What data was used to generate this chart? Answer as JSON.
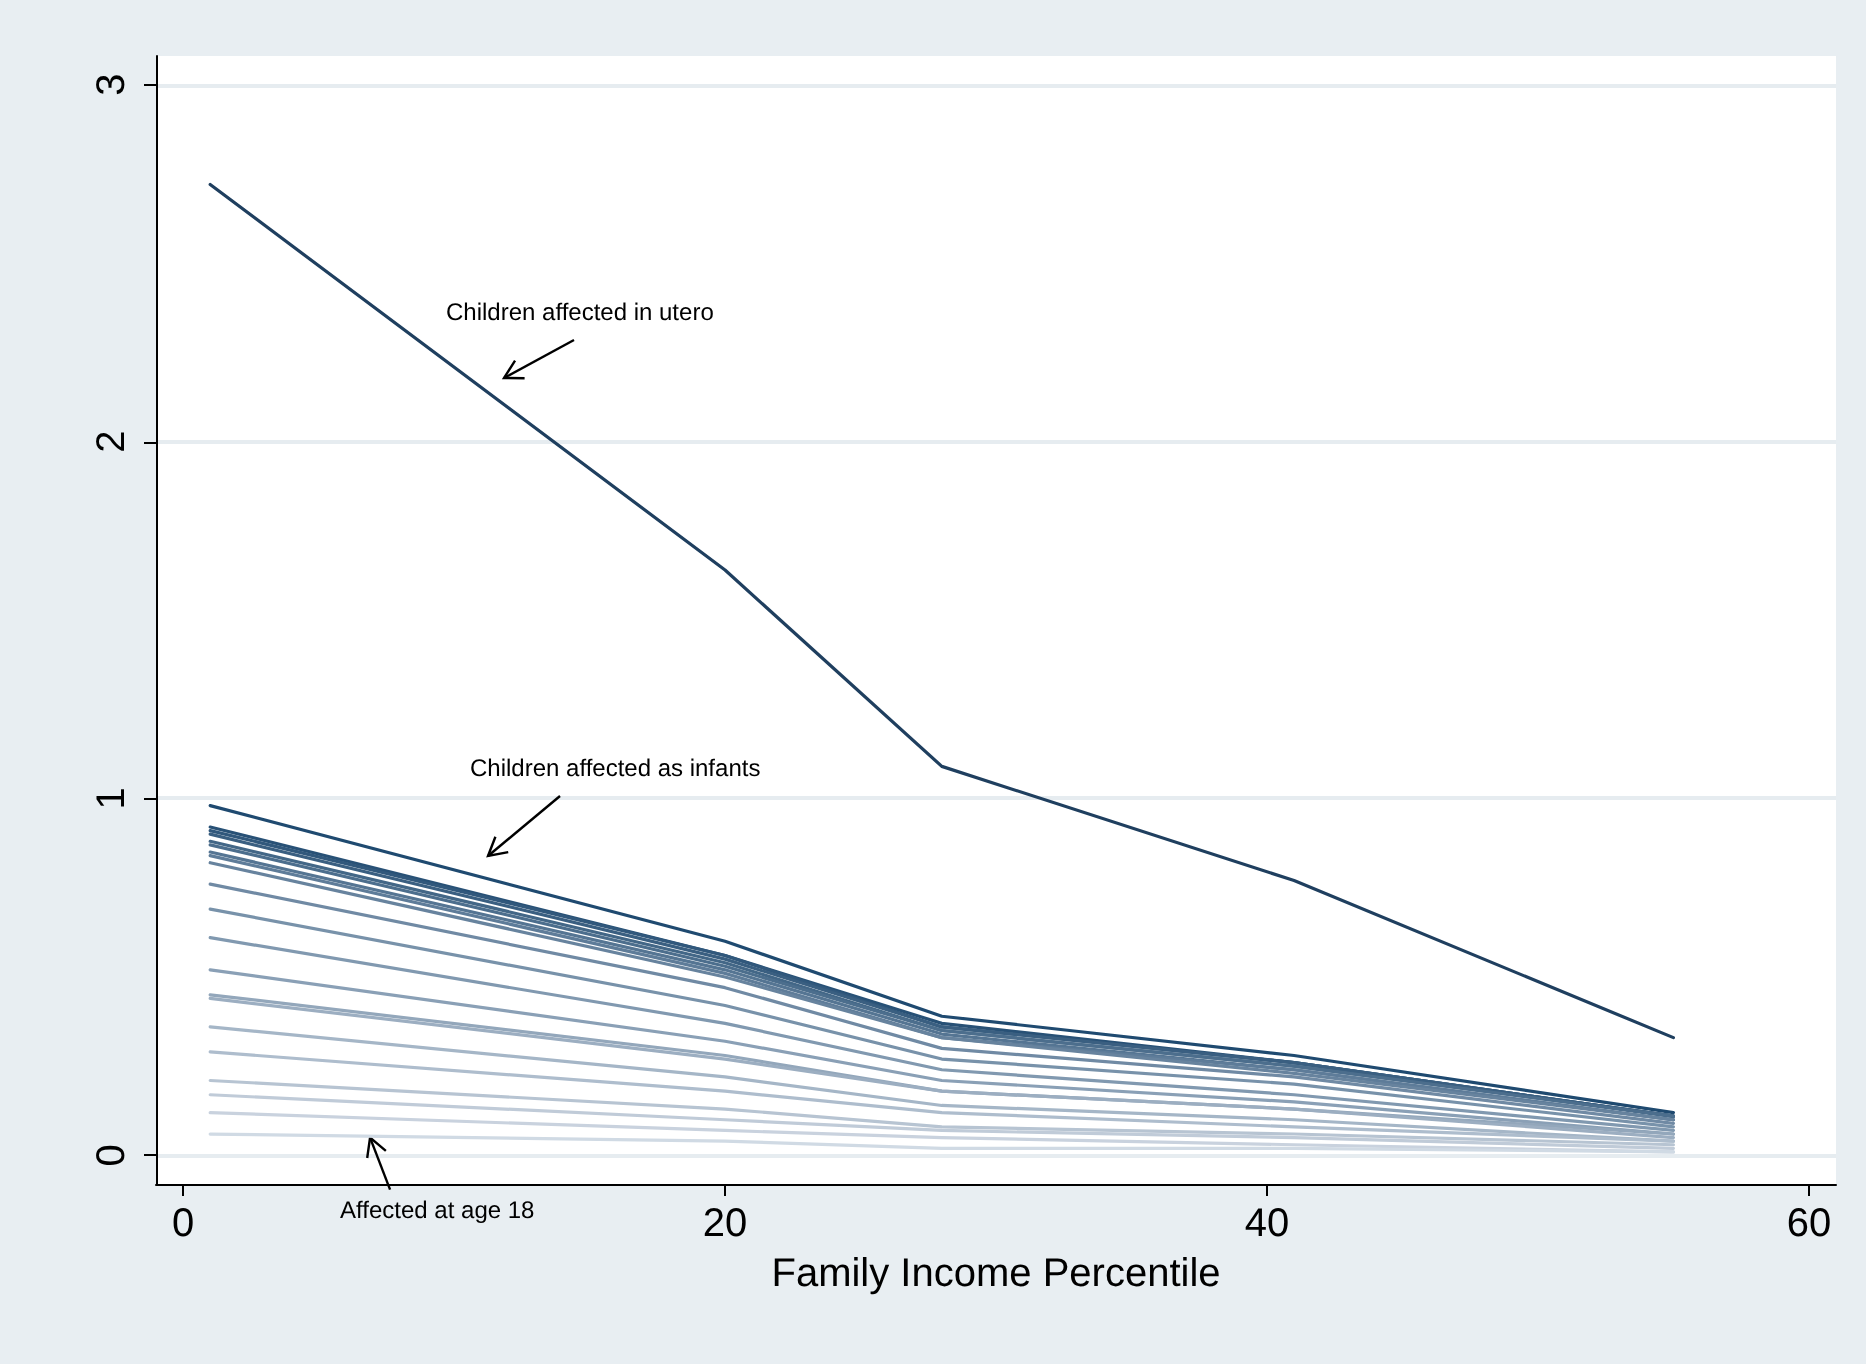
{
  "chart_data": {
    "type": "line",
    "xlabel": "Family Income Percentile",
    "xlim": [
      -1,
      61
    ],
    "xticks": [
      0,
      20,
      40,
      60
    ],
    "ylim": [
      -0.08,
      3.08
    ],
    "yticks": [
      0,
      1,
      2,
      3
    ],
    "grid": "y",
    "marker": "none",
    "line_style": "solid",
    "x": [
      1,
      20,
      28,
      41,
      55
    ],
    "series": [
      {
        "color": "#1f3f5f",
        "values": [
          2.72,
          1.64,
          1.09,
          0.77,
          0.33
        ]
      },
      {
        "color": "#1f4a70",
        "values": [
          0.98,
          0.6,
          0.39,
          0.28,
          0.12
        ]
      },
      {
        "color": "#285176",
        "values": [
          0.92,
          0.56,
          0.37,
          0.26,
          0.11
        ]
      },
      {
        "color": "#31587c",
        "values": [
          0.91,
          0.56,
          0.36,
          0.26,
          0.11
        ]
      },
      {
        "color": "#3a5f81",
        "values": [
          0.9,
          0.55,
          0.36,
          0.26,
          0.11
        ]
      },
      {
        "color": "#436787",
        "values": [
          0.88,
          0.54,
          0.35,
          0.25,
          0.11
        ]
      },
      {
        "color": "#4c6e8d",
        "values": [
          0.87,
          0.53,
          0.35,
          0.25,
          0.11
        ]
      },
      {
        "color": "#557593",
        "values": [
          0.85,
          0.52,
          0.34,
          0.24,
          0.1
        ]
      },
      {
        "color": "#5e7c99",
        "values": [
          0.84,
          0.51,
          0.33,
          0.24,
          0.1
        ]
      },
      {
        "color": "#67839e",
        "values": [
          0.82,
          0.5,
          0.33,
          0.23,
          0.1
        ]
      },
      {
        "color": "#708aa4",
        "values": [
          0.76,
          0.47,
          0.3,
          0.22,
          0.09
        ]
      },
      {
        "color": "#7892aa",
        "values": [
          0.69,
          0.42,
          0.27,
          0.2,
          0.08
        ]
      },
      {
        "color": "#8199b0",
        "values": [
          0.61,
          0.37,
          0.24,
          0.17,
          0.07
        ]
      },
      {
        "color": "#8aa0b6",
        "values": [
          0.52,
          0.32,
          0.21,
          0.15,
          0.06
        ]
      },
      {
        "color": "#93a7bb",
        "values": [
          0.45,
          0.28,
          0.18,
          0.13,
          0.06
        ]
      },
      {
        "color": "#9caec1",
        "values": [
          0.44,
          0.27,
          0.18,
          0.13,
          0.05
        ]
      },
      {
        "color": "#a5b6c7",
        "values": [
          0.36,
          0.22,
          0.14,
          0.1,
          0.04
        ]
      },
      {
        "color": "#aebdcd",
        "values": [
          0.29,
          0.18,
          0.12,
          0.08,
          0.04
        ]
      },
      {
        "color": "#b7c4d2",
        "values": [
          0.21,
          0.13,
          0.08,
          0.06,
          0.03
        ]
      },
      {
        "color": "#c0cbd8",
        "values": [
          0.17,
          0.1,
          0.07,
          0.05,
          0.02
        ]
      },
      {
        "color": "#c9d2de",
        "values": [
          0.12,
          0.07,
          0.05,
          0.03,
          0.01
        ]
      },
      {
        "color": "#d0dae4",
        "values": [
          0.06,
          0.04,
          0.02,
          0.02,
          0.01
        ]
      }
    ],
    "annotations": [
      "Children affected in utero",
      "Children affected as infants",
      {
        "text": "Affected at age 18",
        "x": 6.9,
        "y": 0.05
      }
    ]
  }
}
